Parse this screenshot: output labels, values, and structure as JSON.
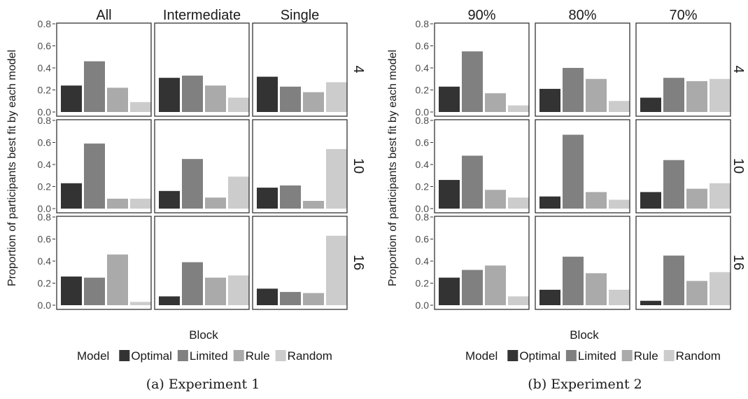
{
  "chart_data": [
    {
      "type": "bar",
      "caption": "(a) Experiment 1",
      "ylabel": "Proportion of participants best fit by each model",
      "xlabel": "Block",
      "legend_title": "Model",
      "legend": [
        "Optimal",
        "Limited",
        "Rule",
        "Random"
      ],
      "ylim": [
        0,
        0.8
      ],
      "yticks": [
        "0.0",
        "0.2",
        "0.4",
        "0.6",
        "0.8"
      ],
      "columns": [
        "All",
        "Intermediate",
        "Single"
      ],
      "rows": [
        "4",
        "10",
        "16"
      ],
      "series_colors": [
        "#333333",
        "#808080",
        "#aaaaaa",
        "#cccccc"
      ],
      "panels": [
        [
          [
            0.24,
            0.46,
            0.22,
            0.09
          ],
          [
            0.31,
            0.33,
            0.24,
            0.13
          ],
          [
            0.32,
            0.23,
            0.18,
            0.27
          ]
        ],
        [
          [
            0.23,
            0.59,
            0.09,
            0.09
          ],
          [
            0.16,
            0.45,
            0.1,
            0.29
          ],
          [
            0.19,
            0.21,
            0.07,
            0.54
          ]
        ],
        [
          [
            0.26,
            0.25,
            0.46,
            0.03
          ],
          [
            0.08,
            0.39,
            0.25,
            0.27
          ],
          [
            0.15,
            0.12,
            0.11,
            0.63
          ]
        ]
      ]
    },
    {
      "type": "bar",
      "caption": "(b) Experiment 2",
      "ylabel": "Proportion of participants best fit by each model",
      "xlabel": "Block",
      "legend_title": "Model",
      "legend": [
        "Optimal",
        "Limited",
        "Rule",
        "Random"
      ],
      "ylim": [
        0,
        0.8
      ],
      "yticks": [
        "0.0",
        "0.2",
        "0.4",
        "0.6",
        "0.8"
      ],
      "columns": [
        "90%",
        "80%",
        "70%"
      ],
      "rows": [
        "4",
        "10",
        "16"
      ],
      "series_colors": [
        "#333333",
        "#808080",
        "#aaaaaa",
        "#cccccc"
      ],
      "panels": [
        [
          [
            0.23,
            0.55,
            0.17,
            0.06
          ],
          [
            0.21,
            0.4,
            0.3,
            0.1
          ],
          [
            0.13,
            0.31,
            0.28,
            0.3
          ]
        ],
        [
          [
            0.26,
            0.48,
            0.17,
            0.1
          ],
          [
            0.11,
            0.67,
            0.15,
            0.08
          ],
          [
            0.15,
            0.44,
            0.18,
            0.23
          ]
        ],
        [
          [
            0.25,
            0.32,
            0.36,
            0.08
          ],
          [
            0.14,
            0.44,
            0.29,
            0.14
          ],
          [
            0.04,
            0.45,
            0.22,
            0.3
          ]
        ]
      ]
    }
  ]
}
